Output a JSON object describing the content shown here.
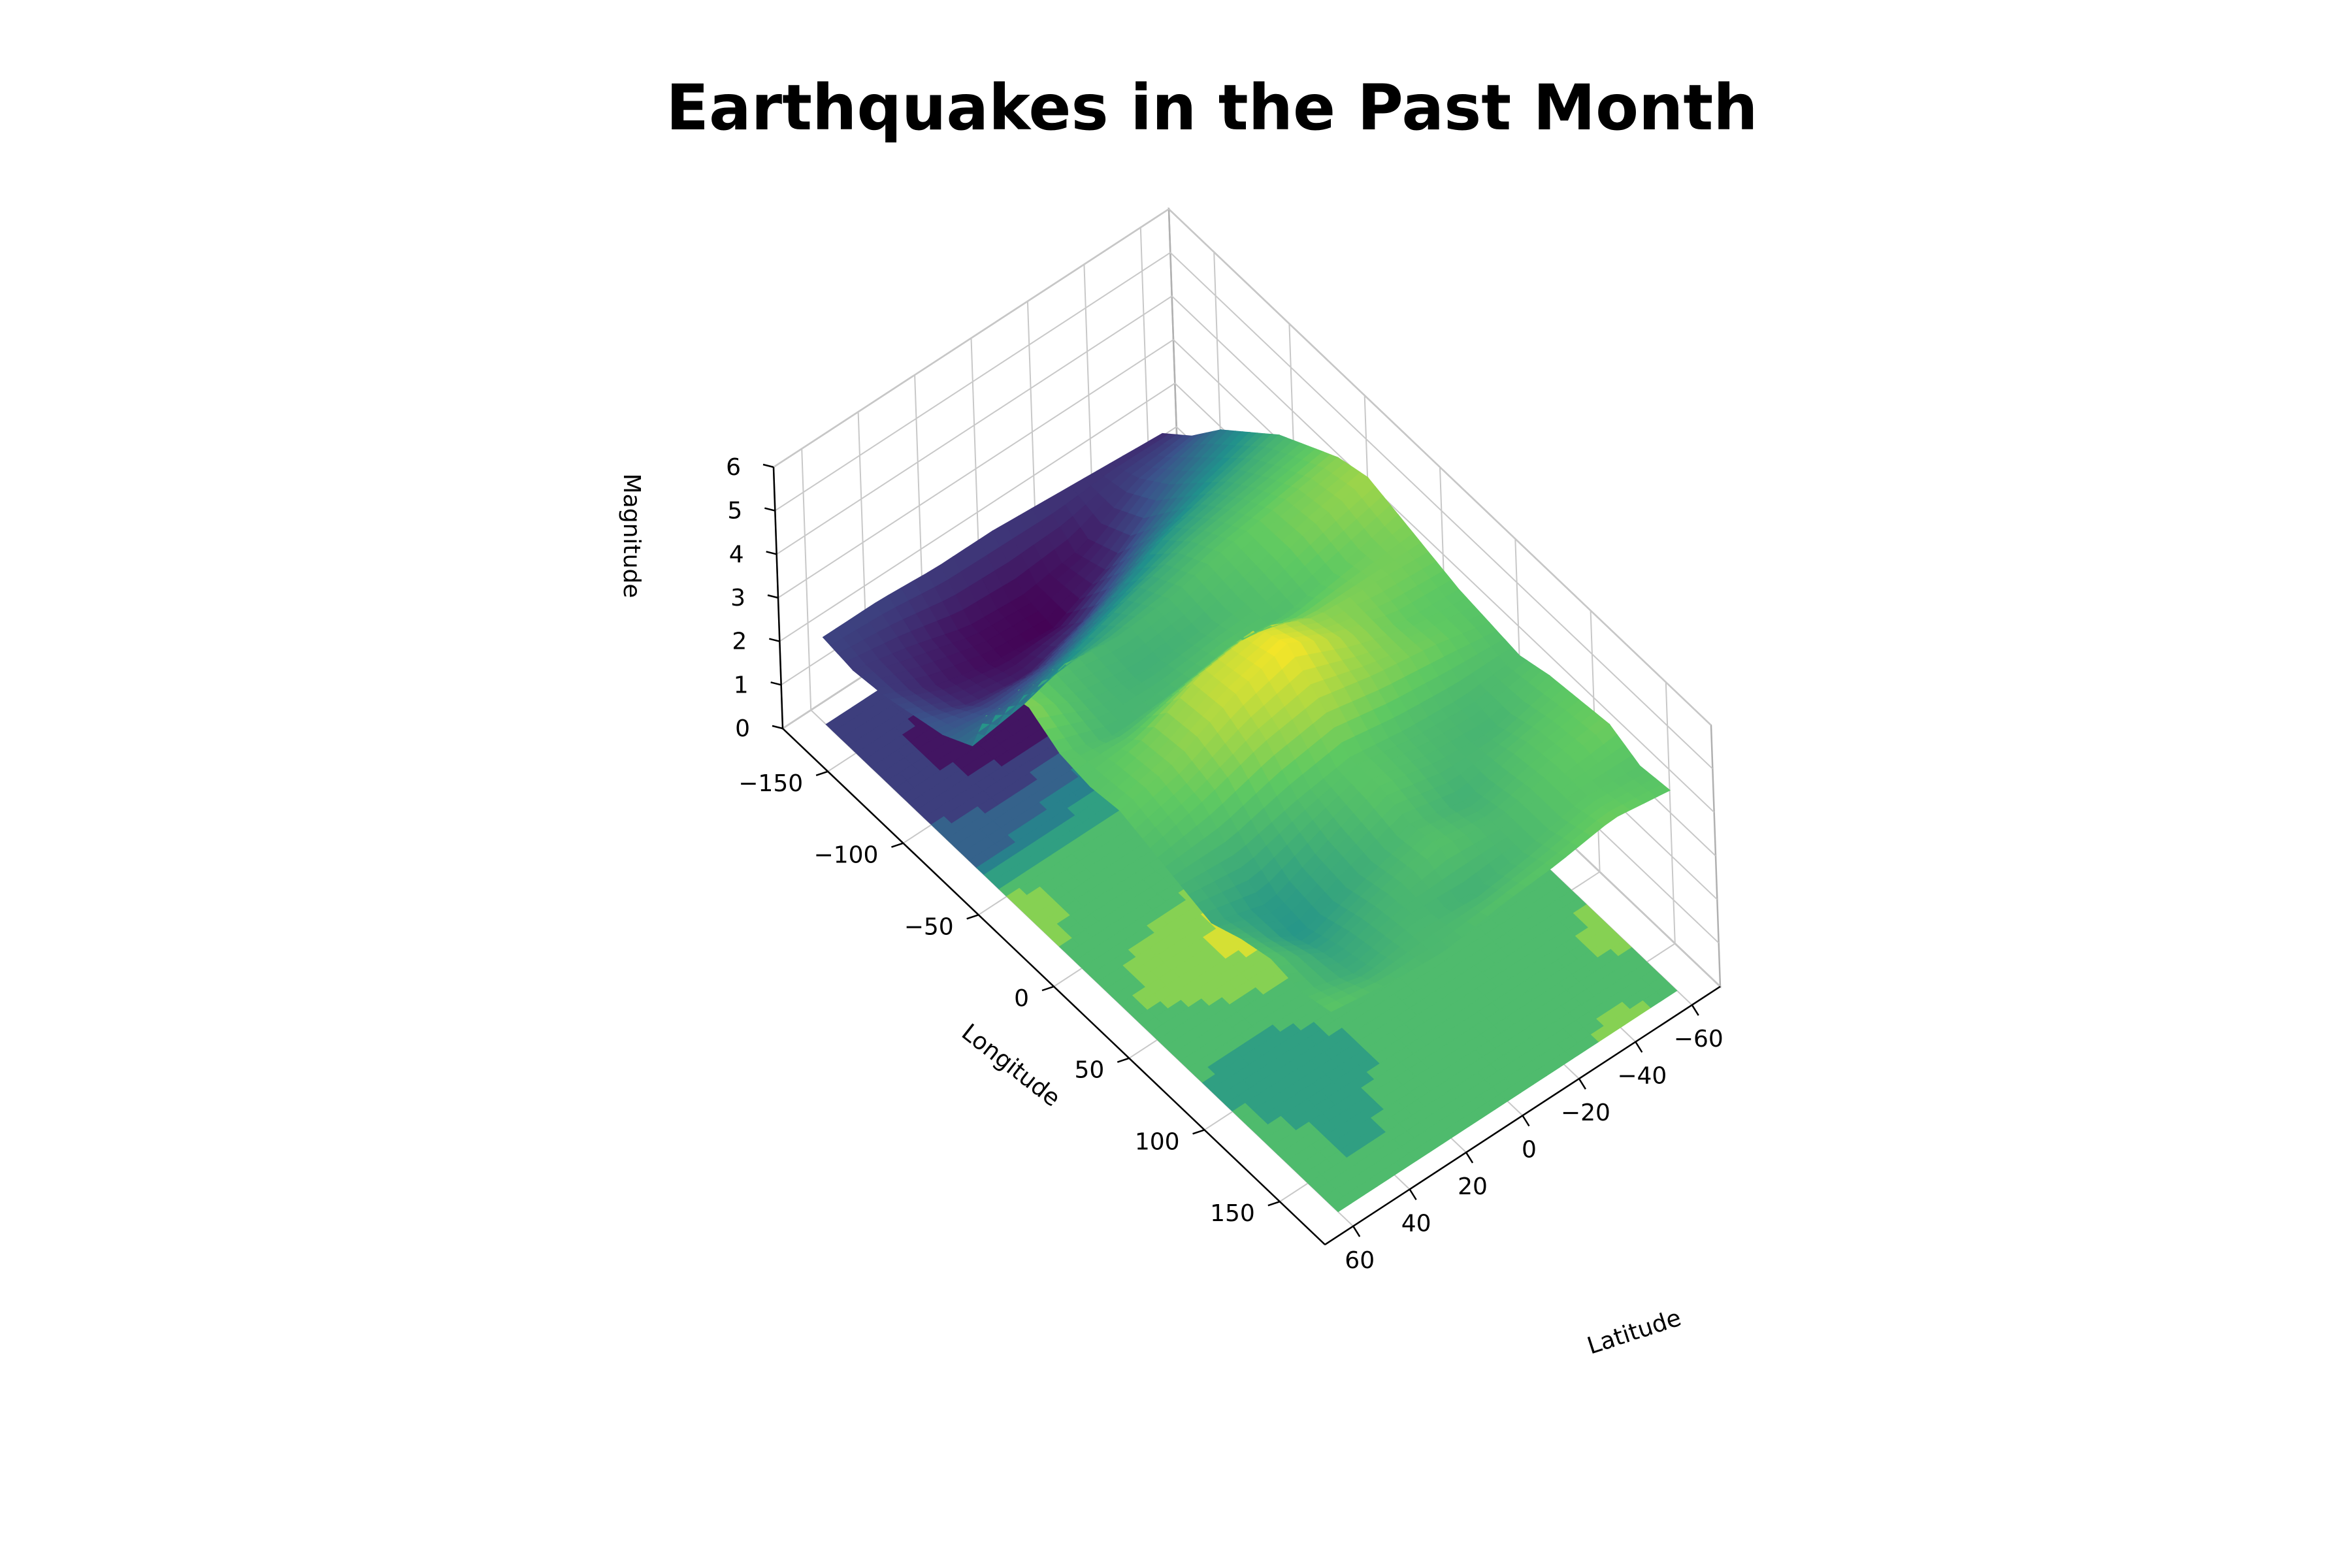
{
  "chart_data": {
    "type": "surface",
    "title": "Earthquakes in the Past Month",
    "xlabel": "Longitude",
    "ylabel": "Latitude",
    "zlabel": "Magnitude",
    "xlim": [
      -180,
      180
    ],
    "ylim": [
      -70,
      70
    ],
    "zlim": [
      0,
      6
    ],
    "x_ticks": [
      -150,
      -100,
      -50,
      0,
      50,
      100,
      150
    ],
    "x_tick_labels": [
      "−150",
      "−100",
      "−50",
      "0",
      "50",
      "100",
      "150"
    ],
    "y_ticks": [
      60,
      40,
      20,
      0,
      -20,
      -40,
      -60
    ],
    "y_tick_labels": [
      "60",
      "40",
      "20",
      "0",
      "−20",
      "−40",
      "−60"
    ],
    "z_ticks": [
      0,
      1,
      2,
      3,
      4,
      5,
      6
    ],
    "z_tick_labels": [
      "0",
      "1",
      "2",
      "3",
      "4",
      "5",
      "6"
    ],
    "colormap": "viridis",
    "colormap_stops": [
      "#440154",
      "#3b528b",
      "#21918c",
      "#5ec962",
      "#fde725"
    ],
    "grid": true,
    "contour_offset": 0,
    "surface_longitudes": [
      -170,
      -150,
      -130,
      -110,
      -90,
      -70,
      -50,
      -30,
      -10,
      10,
      30,
      50,
      70,
      90,
      110,
      130,
      150,
      170
    ],
    "surface_latitudes": [
      -60,
      -40,
      -20,
      0,
      20,
      40,
      60
    ],
    "magnitude_grid": [
      [
        1.6,
        1.7,
        1.8,
        1.9,
        1.9,
        2.0,
        2.0
      ],
      [
        2.2,
        2.0,
        1.3,
        1.1,
        1.2,
        1.6,
        1.9
      ],
      [
        3.0,
        2.5,
        1.6,
        1.0,
        1.1,
        1.4,
        2.0
      ],
      [
        3.6,
        3.2,
        2.6,
        1.8,
        1.4,
        1.6,
        2.2
      ],
      [
        4.2,
        3.9,
        3.6,
        3.0,
        2.4,
        2.2,
        2.4
      ],
      [
        4.6,
        4.4,
        4.2,
        3.9,
        3.5,
        3.0,
        2.8
      ],
      [
        5.0,
        4.8,
        4.6,
        4.3,
        4.2,
        4.4,
        4.8
      ],
      [
        5.2,
        4.9,
        4.5,
        4.2,
        4.1,
        4.3,
        5.0
      ],
      [
        5.0,
        4.7,
        4.4,
        4.5,
        4.3,
        4.2,
        4.6
      ],
      [
        4.8,
        4.9,
        5.0,
        5.6,
        5.4,
        4.8,
        4.5
      ],
      [
        4.6,
        4.7,
        5.2,
        5.9,
        5.5,
        4.9,
        4.6
      ],
      [
        4.5,
        4.8,
        5.0,
        5.3,
        5.1,
        4.7,
        4.4
      ],
      [
        4.4,
        4.3,
        4.4,
        4.6,
        4.4,
        4.1,
        4.2
      ],
      [
        4.6,
        4.2,
        4.3,
        4.6,
        4.1,
        3.6,
        4.0
      ],
      [
        4.7,
        4.5,
        4.1,
        4.4,
        4.0,
        3.5,
        4.3
      ],
      [
        4.8,
        4.6,
        4.3,
        4.5,
        4.2,
        3.8,
        4.5
      ],
      [
        4.5,
        4.6,
        4.3,
        4.1,
        4.3,
        4.0,
        4.4
      ],
      [
        4.6,
        4.8,
        4.6,
        4.5,
        4.3,
        4.4,
        4.6
      ]
    ]
  }
}
